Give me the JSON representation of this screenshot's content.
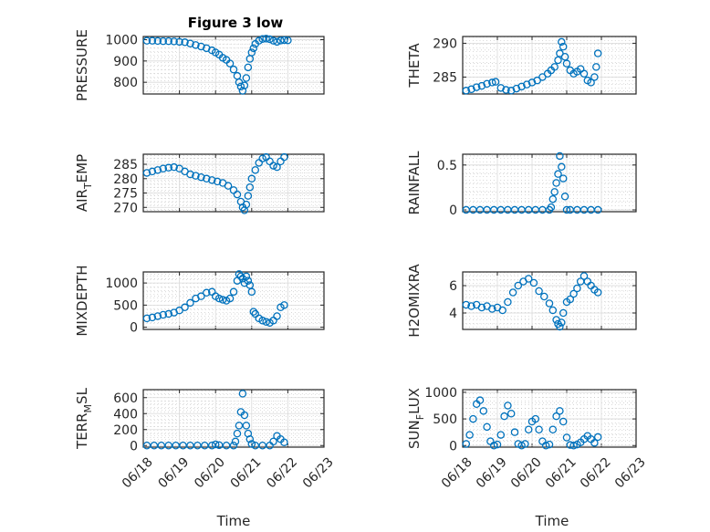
{
  "title": "Figure 3 low",
  "xlabel": "Time",
  "x_ticks": [
    "06/18",
    "06/19",
    "06/20",
    "06/21",
    "06/22",
    "06/23"
  ],
  "colors": {
    "marker": "#0072BD",
    "axis": "#262626"
  },
  "chart_data": [
    {
      "type": "scatter",
      "id": "pressure",
      "ylabel": "PRESSURE",
      "yticks": [
        800,
        900,
        1000
      ],
      "ylim": [
        745,
        1015
      ],
      "x": [
        0.1,
        0.25,
        0.4,
        0.55,
        0.7,
        0.85,
        1.0,
        1.15,
        1.3,
        1.45,
        1.6,
        1.75,
        1.9,
        2.0,
        2.1,
        2.2,
        2.3,
        2.4,
        2.5,
        2.6,
        2.65,
        2.7,
        2.75,
        2.8,
        2.85,
        2.9,
        2.95,
        3.0,
        3.05,
        3.1,
        3.2,
        3.3,
        3.4,
        3.5,
        3.6,
        3.7,
        3.8,
        3.9,
        4.0
      ],
      "y": [
        995,
        995,
        994,
        993,
        993,
        992,
        990,
        988,
        982,
        975,
        968,
        960,
        950,
        940,
        930,
        915,
        905,
        888,
        860,
        830,
        800,
        780,
        760,
        785,
        820,
        870,
        910,
        940,
        960,
        980,
        995,
        1003,
        1005,
        1002,
        995,
        990,
        996,
        998,
        997
      ]
    },
    {
      "type": "scatter",
      "id": "theta",
      "ylabel": "THETA",
      "yticks": [
        285,
        290
      ],
      "ylim": [
        282.5,
        291
      ],
      "x": [
        0.1,
        0.25,
        0.4,
        0.55,
        0.7,
        0.85,
        0.95,
        1.1,
        1.25,
        1.4,
        1.55,
        1.7,
        1.85,
        2.0,
        2.15,
        2.3,
        2.45,
        2.55,
        2.65,
        2.75,
        2.8,
        2.85,
        2.9,
        2.95,
        3.0,
        3.1,
        3.2,
        3.3,
        3.4,
        3.5,
        3.6,
        3.7,
        3.8,
        3.85,
        3.9
      ],
      "y": [
        283,
        283.2,
        283.5,
        283.7,
        284,
        284.2,
        284.3,
        283.4,
        283.1,
        283,
        283.3,
        283.6,
        283.9,
        284.2,
        284.5,
        285,
        285.5,
        286,
        286.5,
        287.5,
        288.5,
        290.2,
        289.5,
        288,
        287,
        286,
        285.5,
        285.8,
        286.2,
        285.5,
        284.5,
        284.2,
        285,
        286.5,
        288.5
      ]
    },
    {
      "type": "scatter",
      "id": "airtemp",
      "ylabel_main": "AIR",
      "ylabel_sub": "T",
      "ylabel_tail": "EMP",
      "yticks": [
        270,
        275,
        280,
        285
      ],
      "ylim": [
        268.5,
        288.5
      ],
      "x": [
        0.1,
        0.25,
        0.4,
        0.55,
        0.7,
        0.85,
        1.0,
        1.15,
        1.3,
        1.45,
        1.6,
        1.75,
        1.9,
        2.05,
        2.2,
        2.35,
        2.5,
        2.6,
        2.7,
        2.75,
        2.8,
        2.85,
        2.9,
        2.95,
        3.0,
        3.1,
        3.2,
        3.3,
        3.4,
        3.5,
        3.6,
        3.7,
        3.8,
        3.9
      ],
      "y": [
        282,
        282.5,
        283,
        283.5,
        283.8,
        284,
        283.5,
        282.5,
        281.5,
        281,
        280.5,
        280,
        279.5,
        279,
        278.5,
        277.5,
        276,
        274.5,
        272,
        270,
        269,
        271,
        274,
        277,
        280,
        283,
        285.5,
        287,
        287.5,
        286,
        284.5,
        284,
        286,
        287.5
      ]
    },
    {
      "type": "scatter",
      "id": "rainfall",
      "ylabel": "RAINFALL",
      "yticks": [
        0,
        0.5
      ],
      "ylim": [
        -0.02,
        0.62
      ],
      "x": [
        0.1,
        0.3,
        0.5,
        0.7,
        0.9,
        1.1,
        1.3,
        1.5,
        1.7,
        1.9,
        2.1,
        2.3,
        2.5,
        2.55,
        2.6,
        2.65,
        2.7,
        2.75,
        2.8,
        2.85,
        2.9,
        2.95,
        3.0,
        3.1,
        3.3,
        3.5,
        3.7,
        3.9
      ],
      "y": [
        0,
        0,
        0,
        0,
        0,
        0,
        0,
        0,
        0,
        0,
        0,
        0,
        0,
        0.03,
        0.12,
        0.2,
        0.3,
        0.4,
        0.6,
        0.48,
        0.35,
        0.15,
        0,
        0,
        0,
        0,
        0,
        0
      ]
    },
    {
      "type": "scatter",
      "id": "mixdepth",
      "ylabel": "MIXDEPTH",
      "yticks": [
        0,
        500,
        1000
      ],
      "ylim": [
        -50,
        1250
      ],
      "x": [
        0.1,
        0.25,
        0.4,
        0.55,
        0.7,
        0.85,
        1.0,
        1.15,
        1.3,
        1.45,
        1.6,
        1.75,
        1.9,
        2.0,
        2.1,
        2.2,
        2.3,
        2.4,
        2.5,
        2.6,
        2.65,
        2.7,
        2.75,
        2.8,
        2.85,
        2.9,
        2.95,
        3.0,
        3.05,
        3.1,
        3.2,
        3.3,
        3.4,
        3.5,
        3.6,
        3.7,
        3.8,
        3.9
      ],
      "y": [
        200,
        220,
        250,
        280,
        300,
        330,
        380,
        450,
        550,
        650,
        700,
        780,
        800,
        700,
        650,
        620,
        600,
        650,
        800,
        1050,
        1200,
        1150,
        1100,
        1000,
        1150,
        1050,
        950,
        800,
        350,
        300,
        200,
        150,
        120,
        100,
        150,
        250,
        450,
        500
      ]
    },
    {
      "type": "scatter",
      "id": "h2omixra",
      "ylabel": "H2OMIXRA",
      "yticks": [
        4,
        6
      ],
      "ylim": [
        2.8,
        7.0
      ],
      "x": [
        0.1,
        0.25,
        0.4,
        0.55,
        0.7,
        0.85,
        1.0,
        1.15,
        1.3,
        1.45,
        1.6,
        1.75,
        1.9,
        2.05,
        2.2,
        2.35,
        2.5,
        2.6,
        2.7,
        2.75,
        2.8,
        2.85,
        2.9,
        3.0,
        3.1,
        3.2,
        3.3,
        3.4,
        3.5,
        3.6,
        3.7,
        3.8,
        3.9
      ],
      "y": [
        4.6,
        4.5,
        4.6,
        4.4,
        4.5,
        4.3,
        4.4,
        4.2,
        4.8,
        5.5,
        6.0,
        6.3,
        6.5,
        6.2,
        5.6,
        5.2,
        4.7,
        4.2,
        3.5,
        3.2,
        3.0,
        3.3,
        4.0,
        4.8,
        5.0,
        5.4,
        5.8,
        6.3,
        6.7,
        6.3,
        6.0,
        5.7,
        5.5
      ]
    },
    {
      "type": "scatter",
      "id": "terrmsl",
      "ylabel_main": "TERR",
      "ylabel_sub": "M",
      "ylabel_tail": "SL",
      "yticks": [
        0,
        200,
        400,
        600
      ],
      "ylim": [
        -20,
        700
      ],
      "x": [
        0.1,
        0.3,
        0.5,
        0.7,
        0.9,
        1.1,
        1.3,
        1.5,
        1.7,
        1.9,
        2.0,
        2.1,
        2.3,
        2.5,
        2.55,
        2.6,
        2.65,
        2.7,
        2.75,
        2.8,
        2.85,
        2.9,
        2.95,
        3.0,
        3.1,
        3.3,
        3.5,
        3.6,
        3.7,
        3.8,
        3.9
      ],
      "y": [
        0,
        0,
        0,
        0,
        0,
        0,
        0,
        0,
        0,
        0,
        15,
        5,
        0,
        0,
        50,
        150,
        250,
        420,
        650,
        380,
        250,
        150,
        80,
        20,
        0,
        0,
        0,
        50,
        120,
        80,
        40
      ]
    },
    {
      "type": "scatter",
      "id": "sunflux",
      "ylabel_main": "SUN",
      "ylabel_sub": "F",
      "ylabel_tail": "LUX",
      "yticks": [
        0,
        500,
        1000
      ],
      "ylim": [
        -30,
        1050
      ],
      "x": [
        0.1,
        0.2,
        0.3,
        0.4,
        0.5,
        0.6,
        0.7,
        0.8,
        0.9,
        1.0,
        1.1,
        1.2,
        1.3,
        1.4,
        1.5,
        1.6,
        1.7,
        1.8,
        1.9,
        2.0,
        2.1,
        2.2,
        2.3,
        2.4,
        2.5,
        2.6,
        2.7,
        2.8,
        2.9,
        3.0,
        3.1,
        3.2,
        3.3,
        3.4,
        3.5,
        3.6,
        3.7,
        3.8,
        3.9
      ],
      "y": [
        30,
        200,
        500,
        780,
        850,
        650,
        350,
        80,
        0,
        20,
        200,
        550,
        750,
        600,
        250,
        30,
        0,
        30,
        300,
        450,
        500,
        300,
        80,
        0,
        20,
        300,
        550,
        650,
        450,
        150,
        10,
        0,
        20,
        60,
        120,
        180,
        120,
        50,
        160
      ]
    }
  ]
}
